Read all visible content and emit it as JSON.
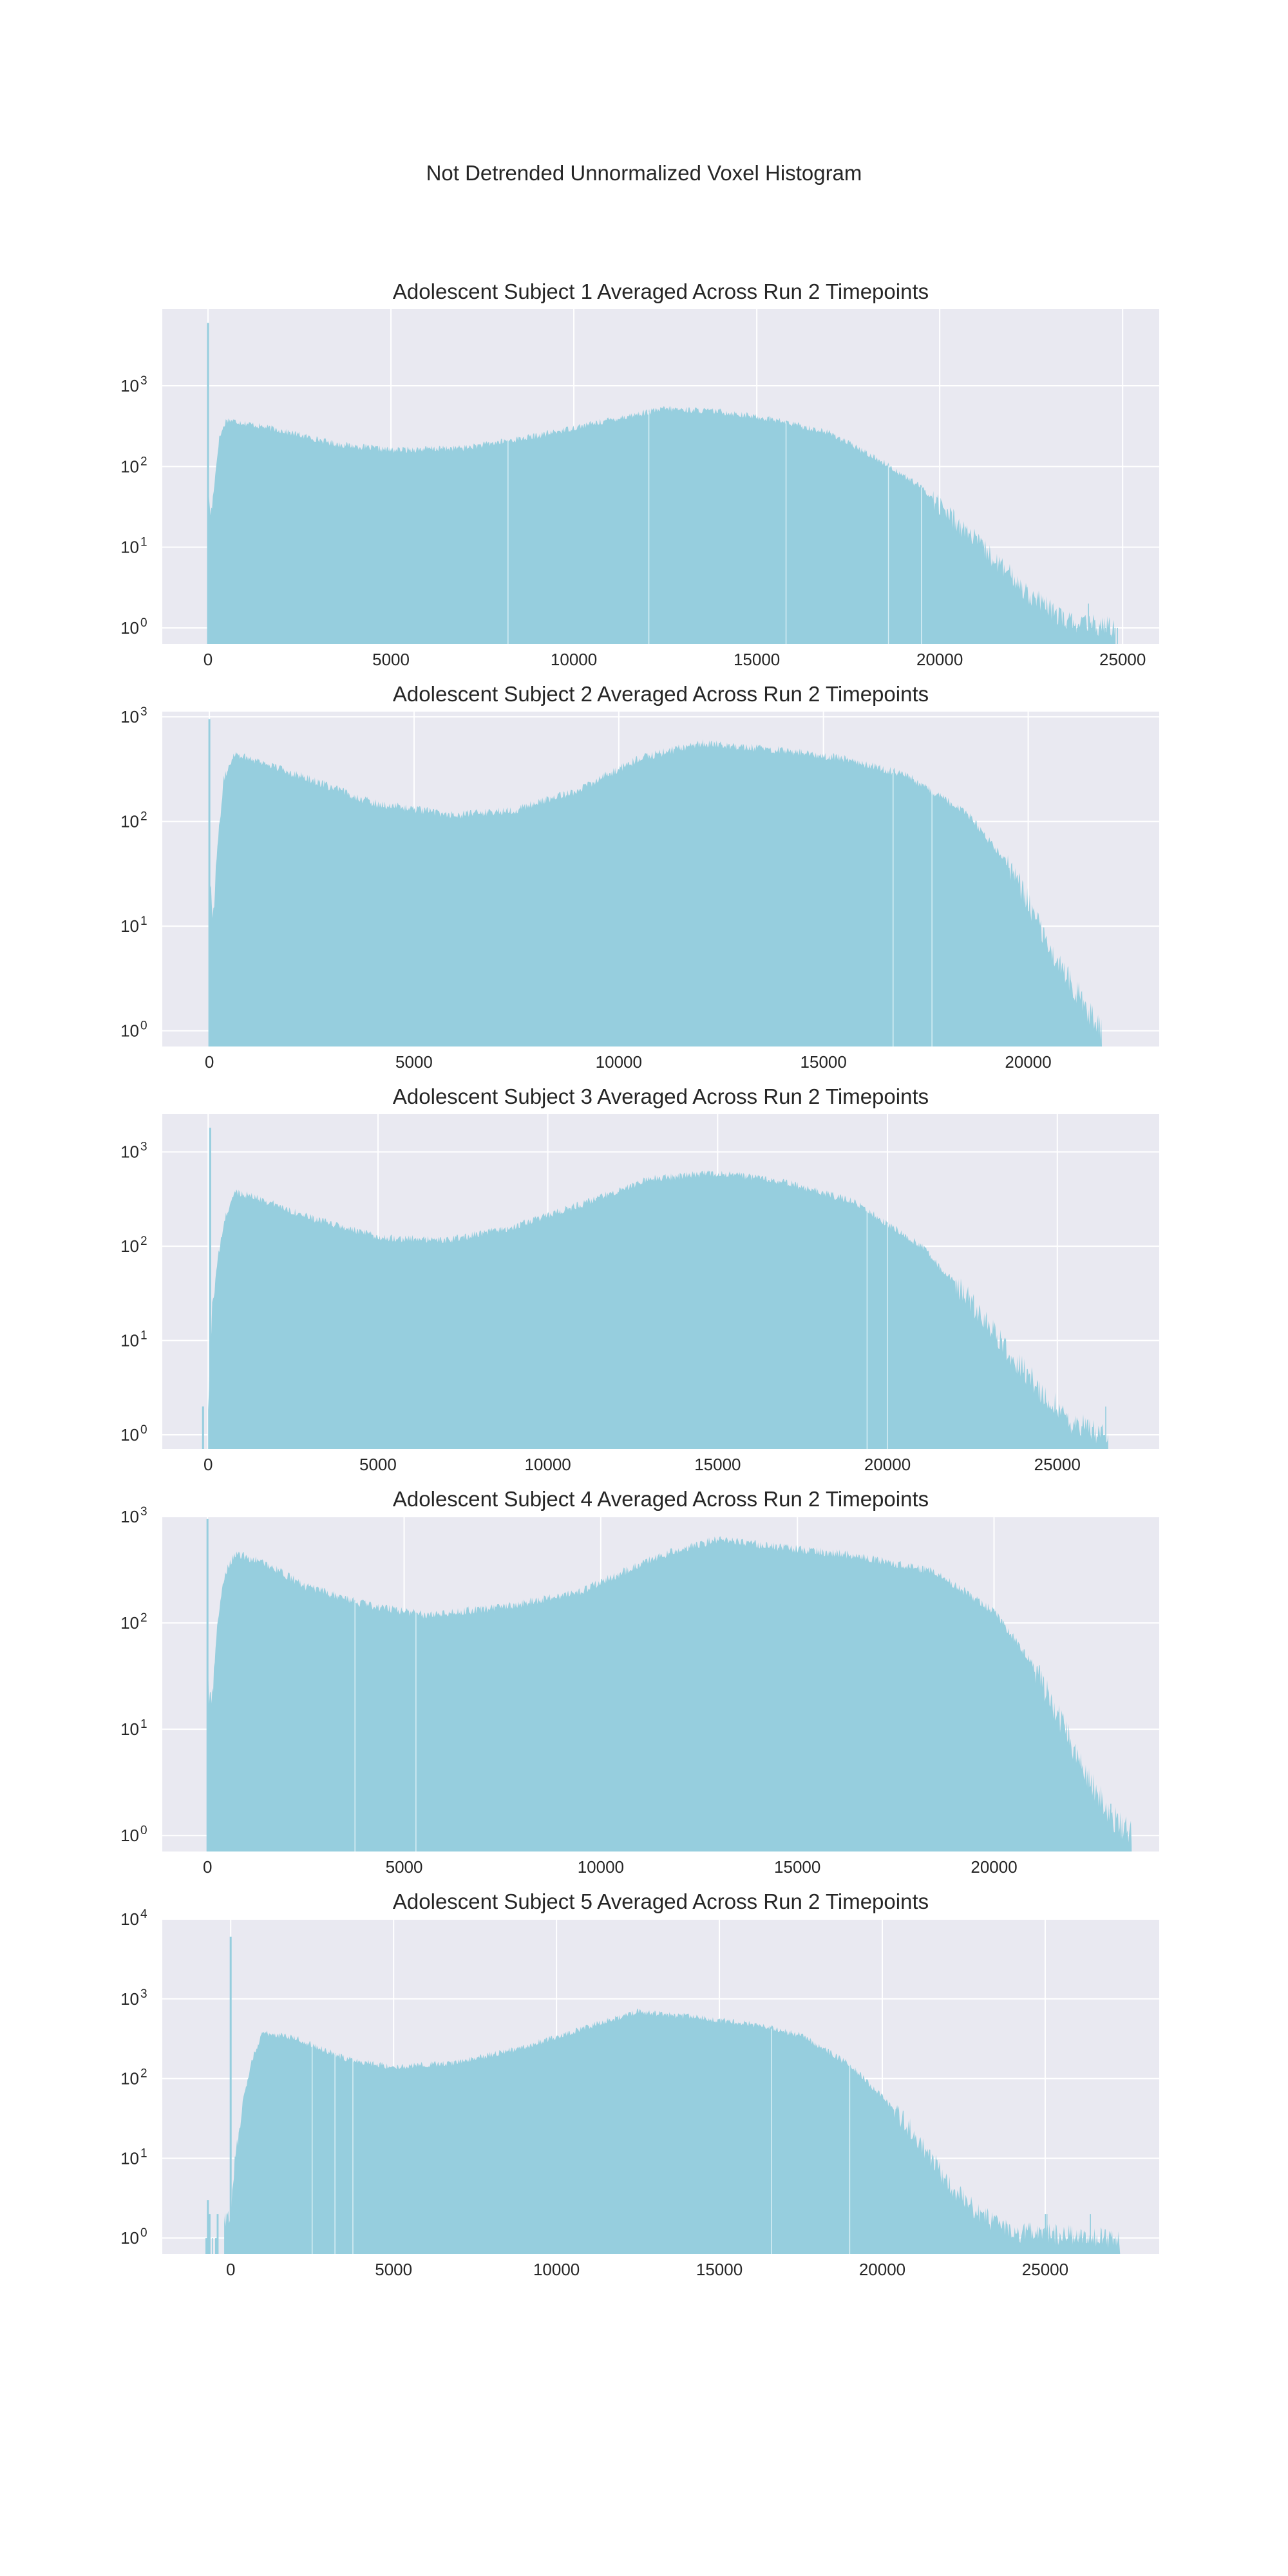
{
  "figure": {
    "suptitle": "Not Detrended Unnormalized Voxel Histogram"
  },
  "style": {
    "panel_bg": "#e9e9f1",
    "grid": "#ffffff",
    "bar": "#96cede",
    "text": "#262626"
  },
  "chart_data": [
    {
      "type": "bar",
      "title": "Adolescent Subject 1 Averaged Across Run 2 Timepoints",
      "xlabel": "",
      "ylabel": "",
      "yscale": "log",
      "xlim": [
        -1250,
        26000
      ],
      "ylim_exp": [
        -0.2,
        3.95
      ],
      "xticks": [
        0,
        5000,
        10000,
        15000,
        20000,
        25000
      ],
      "xtick_labels": [
        "0",
        "5000",
        "10000",
        "15000",
        "20000",
        "25000"
      ],
      "yticks_exp": [
        0,
        1,
        2,
        3
      ],
      "ytick_labels": [
        "10",
        "10",
        "10",
        "10"
      ],
      "ytick_sups": [
        "0",
        "1",
        "2",
        "3"
      ],
      "grid": true,
      "profile": [
        [
          0,
          50
        ],
        [
          80,
          25
        ],
        [
          200,
          80
        ],
        [
          300,
          220
        ],
        [
          500,
          380
        ],
        [
          800,
          360
        ],
        [
          2000,
          280
        ],
        [
          3500,
          190
        ],
        [
          5000,
          160
        ],
        [
          7000,
          170
        ],
        [
          9000,
          240
        ],
        [
          11000,
          380
        ],
        [
          12500,
          520
        ],
        [
          14000,
          480
        ],
        [
          15500,
          380
        ],
        [
          17000,
          260
        ],
        [
          18500,
          110
        ],
        [
          19500,
          55
        ],
        [
          20500,
          20
        ],
        [
          21500,
          7
        ],
        [
          22500,
          2.5
        ],
        [
          23500,
          1.2
        ],
        [
          24800,
          1
        ]
      ],
      "spikes": [
        [
          0,
          6000
        ]
      ],
      "gaps": [
        8200,
        12050,
        15800,
        18600,
        19500
      ],
      "sparse": [
        [
          22600,
          24900,
          0.08,
          1
        ]
      ]
    },
    {
      "type": "bar",
      "title": "Adolescent Subject 2 Averaged Across Run 2 Timepoints",
      "xlabel": "",
      "ylabel": "",
      "yscale": "log",
      "xlim": [
        -1150,
        23200
      ],
      "ylim_exp": [
        -0.15,
        3.05
      ],
      "xticks": [
        0,
        5000,
        10000,
        15000,
        20000
      ],
      "xtick_labels": [
        "0",
        "5000",
        "10000",
        "15000",
        "20000"
      ],
      "yticks_exp": [
        0,
        1,
        2,
        3
      ],
      "ytick_labels": [
        "10",
        "10",
        "10",
        "10"
      ],
      "ytick_sups": [
        "0",
        "1",
        "2",
        "3"
      ],
      "grid": true,
      "profile": [
        [
          0,
          40
        ],
        [
          80,
          12
        ],
        [
          200,
          60
        ],
        [
          350,
          250
        ],
        [
          600,
          450
        ],
        [
          1200,
          380
        ],
        [
          2500,
          250
        ],
        [
          4000,
          150
        ],
        [
          6000,
          115
        ],
        [
          7500,
          130
        ],
        [
          9000,
          200
        ],
        [
          10500,
          400
        ],
        [
          12000,
          560
        ],
        [
          14000,
          480
        ],
        [
          15500,
          400
        ],
        [
          17000,
          280
        ],
        [
          18500,
          120
        ],
        [
          19500,
          40
        ],
        [
          20300,
          10
        ],
        [
          21000,
          3
        ],
        [
          21800,
          1
        ]
      ],
      "spikes": [
        [
          0,
          950
        ]
      ],
      "gaps": [
        16700,
        17650
      ],
      "sparse": [
        [
          20800,
          22200,
          0.12,
          1
        ]
      ]
    },
    {
      "type": "bar",
      "title": "Adolescent Subject 3 Averaged Across Run 2 Timepoints",
      "xlabel": "",
      "ylabel": "",
      "yscale": "log",
      "xlim": [
        -1350,
        28000
      ],
      "ylim_exp": [
        -0.15,
        3.4
      ],
      "xticks": [
        0,
        5000,
        10000,
        15000,
        20000,
        25000
      ],
      "xtick_labels": [
        "0",
        "5000",
        "10000",
        "15000",
        "20000",
        "25000"
      ],
      "yticks_exp": [
        0,
        1,
        2,
        3
      ],
      "ytick_labels": [
        "10",
        "10",
        "10",
        "10"
      ],
      "ytick_sups": [
        "0",
        "1",
        "2",
        "3"
      ],
      "grid": true,
      "profile": [
        [
          0,
          2
        ],
        [
          120,
          25
        ],
        [
          300,
          80
        ],
        [
          500,
          200
        ],
        [
          800,
          380
        ],
        [
          1500,
          320
        ],
        [
          3000,
          200
        ],
        [
          5000,
          125
        ],
        [
          7000,
          115
        ],
        [
          9000,
          160
        ],
        [
          11000,
          280
        ],
        [
          13000,
          520
        ],
        [
          15000,
          600
        ],
        [
          17000,
          480
        ],
        [
          19000,
          300
        ],
        [
          21000,
          100
        ],
        [
          22500,
          25
        ],
        [
          23500,
          8
        ],
        [
          24500,
          3
        ],
        [
          25500,
          1.3
        ],
        [
          26500,
          1
        ]
      ],
      "spikes": [
        [
          60,
          1800
        ],
        [
          -150,
          2
        ]
      ],
      "gaps": [
        19400,
        20000
      ],
      "sparse": [
        [
          24800,
          26600,
          0.12,
          1
        ]
      ]
    },
    {
      "type": "bar",
      "title": "Adolescent Subject 4 Averaged Across Run 2 Timepoints",
      "xlabel": "",
      "ylabel": "",
      "yscale": "log",
      "xlim": [
        -1150,
        24200
      ],
      "ylim_exp": [
        -0.15,
        3.0
      ],
      "xticks": [
        0,
        5000,
        10000,
        15000,
        20000
      ],
      "xtick_labels": [
        "0",
        "5000",
        "10000",
        "15000",
        "20000"
      ],
      "yticks_exp": [
        0,
        1,
        2,
        3
      ],
      "ytick_labels": [
        "10",
        "10",
        "10",
        "10"
      ],
      "ytick_sups": [
        "0",
        "1",
        "2",
        "3"
      ],
      "grid": true,
      "profile": [
        [
          0,
          30
        ],
        [
          100,
          15
        ],
        [
          250,
          100
        ],
        [
          450,
          300
        ],
        [
          700,
          450
        ],
        [
          1500,
          360
        ],
        [
          2500,
          220
        ],
        [
          4000,
          150
        ],
        [
          5500,
          120
        ],
        [
          7500,
          140
        ],
        [
          9500,
          200
        ],
        [
          11500,
          430
        ],
        [
          13000,
          620
        ],
        [
          14500,
          520
        ],
        [
          16500,
          430
        ],
        [
          18500,
          300
        ],
        [
          20000,
          130
        ],
        [
          21000,
          40
        ],
        [
          21700,
          12
        ],
        [
          22300,
          4
        ],
        [
          23000,
          1.5
        ],
        [
          23500,
          1
        ]
      ],
      "spikes": [
        [
          0,
          950
        ]
      ],
      "gaps": [
        3750,
        5300
      ],
      "sparse": [
        [
          22200,
          23600,
          0.12,
          1
        ]
      ]
    },
    {
      "type": "bar",
      "title": "Adolescent Subject 5 Averaged Across Run 2 Timepoints",
      "xlabel": "",
      "ylabel": "",
      "yscale": "log",
      "xlim": [
        -2100,
        28500
      ],
      "ylim_exp": [
        -0.2,
        4.0
      ],
      "xticks": [
        0,
        5000,
        10000,
        15000,
        20000,
        25000
      ],
      "xtick_labels": [
        "0",
        "5000",
        "10000",
        "15000",
        "20000",
        "25000"
      ],
      "yticks_exp": [
        0,
        1,
        2,
        3,
        4
      ],
      "ytick_labels": [
        "10",
        "10",
        "10",
        "10",
        "10"
      ],
      "ytick_sups": [
        "0",
        "1",
        "2",
        "3",
        "4"
      ],
      "grid": true,
      "profile": [
        [
          -200,
          1.5
        ],
        [
          0,
          2
        ],
        [
          150,
          12
        ],
        [
          400,
          60
        ],
        [
          700,
          200
        ],
        [
          1000,
          380
        ],
        [
          2000,
          320
        ],
        [
          3500,
          180
        ],
        [
          5000,
          140
        ],
        [
          7000,
          160
        ],
        [
          9000,
          250
        ],
        [
          11000,
          450
        ],
        [
          12500,
          700
        ],
        [
          14000,
          600
        ],
        [
          16000,
          480
        ],
        [
          17500,
          350
        ],
        [
          19000,
          150
        ],
        [
          20000,
          60
        ],
        [
          21000,
          20
        ],
        [
          22000,
          5
        ],
        [
          23000,
          2
        ],
        [
          24000,
          1.2
        ],
        [
          27300,
          1
        ]
      ],
      "spikes": [
        [
          0,
          6000
        ],
        [
          -700,
          3
        ]
      ],
      "gaps": [
        2500,
        3200,
        3750,
        16600,
        19000
      ],
      "sparse": [
        [
          -800,
          -300,
          0.4,
          1
        ],
        [
          22000,
          27300,
          0.08,
          1
        ]
      ]
    }
  ]
}
